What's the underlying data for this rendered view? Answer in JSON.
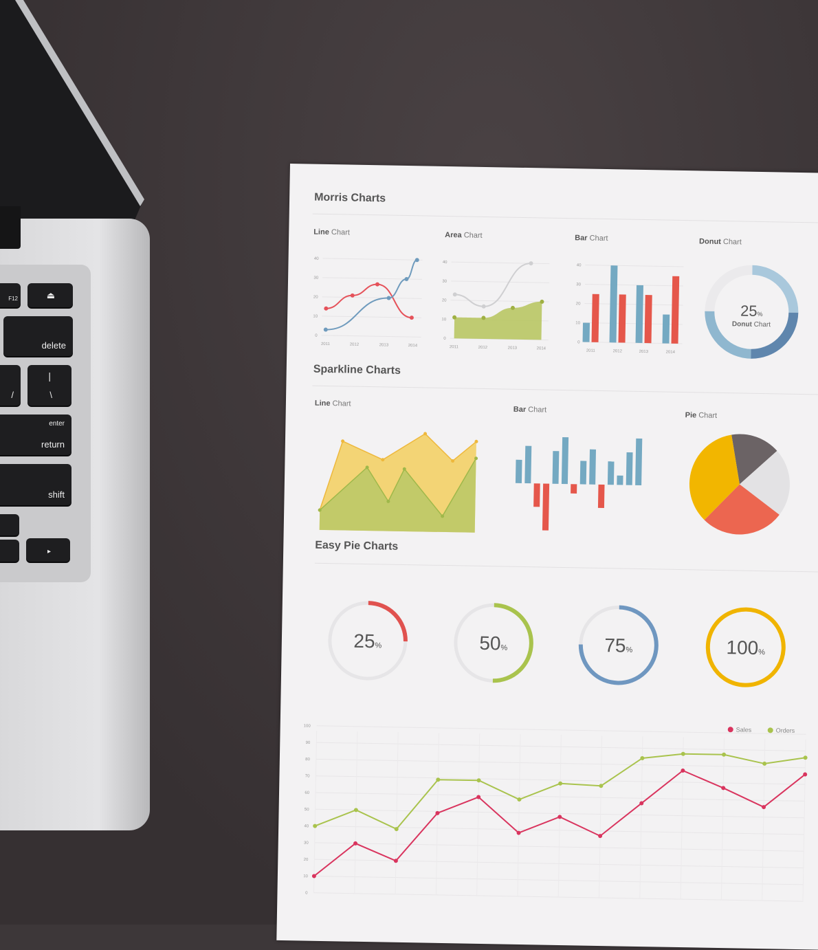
{
  "laptop": {
    "keys": {
      "f12": "F12",
      "eject": "⏏",
      "delete": "delete",
      "slash": "/",
      "pipe": "|",
      "backslash": "\\",
      "enter": "enter",
      "return": "return",
      "shift": "shift",
      "right_arrow": "▸"
    }
  },
  "paper": {
    "sections": {
      "morris": "Morris Charts",
      "sparkline": "Sparkline Charts",
      "easy_pie": "Easy Pie Charts"
    },
    "labels": {
      "bold_line": "Line",
      "bold_area": "Area",
      "bold_bar": "Bar",
      "bold_donut": "Donut",
      "bold_pie": "Pie",
      "chart": " Chart"
    },
    "donut_center": {
      "value": "25",
      "unit": "%",
      "label_bold": "Donut",
      "label_rest": " Chart"
    }
  },
  "colors": {
    "red": "#e5525a",
    "blue": "#6f9bbd",
    "green": "#b5c45a",
    "yellow": "#f2b700",
    "gray": "#cfcfd1",
    "crimson": "#d9345e",
    "lime": "#a9c34d"
  },
  "chart_data": [
    {
      "type": "line",
      "title": "Line Chart",
      "x_ticks": [
        "2011",
        "2012",
        "2013",
        "2014"
      ],
      "y_ticks": [
        "0",
        "10",
        "20",
        "30",
        "40"
      ],
      "ylim": [
        0,
        40
      ],
      "series": [
        {
          "color": "#e5525a",
          "x": [
            2011,
            2011.9,
            2012.75,
            2013.95
          ],
          "y": [
            14,
            21,
            27,
            10
          ]
        },
        {
          "color": "#6f9bbd",
          "x": [
            2011,
            2013.15,
            2013.75,
            2014.1
          ],
          "y": [
            3,
            20,
            30,
            40
          ]
        }
      ]
    },
    {
      "type": "area",
      "title": "Area Chart",
      "x_ticks": [
        "2011",
        "2012",
        "2013",
        "2014"
      ],
      "y_ticks": [
        "0",
        "10",
        "20",
        "30",
        "40"
      ],
      "ylim": [
        0,
        40
      ],
      "series": [
        {
          "color": "#cfcfd1",
          "x": [
            2011,
            2012,
            2013.6
          ],
          "y": [
            23,
            17,
            40
          ]
        },
        {
          "color": "#b5c45a",
          "x": [
            2011,
            2012,
            2013,
            2014
          ],
          "y": [
            11,
            11,
            16.5,
            20
          ]
        }
      ]
    },
    {
      "type": "bar",
      "title": "Bar Chart",
      "categories": [
        "2011",
        "2012",
        "2013",
        "2014"
      ],
      "y_ticks": [
        "0",
        "10",
        "20",
        "30",
        "40"
      ],
      "ylim": [
        0,
        40
      ],
      "series": [
        {
          "color": "#74a9c2",
          "values": [
            10,
            40,
            30,
            15
          ]
        },
        {
          "color": "#e5574b",
          "values": [
            25,
            25,
            25,
            35
          ]
        }
      ]
    },
    {
      "type": "pie",
      "title": "Donut Chart",
      "donut": true,
      "values": [
        25,
        25,
        25,
        25
      ],
      "colors": [
        "#a9c8dc",
        "#5f86ad",
        "#8fb7cf",
        "#ebeaec"
      ]
    },
    {
      "type": "area",
      "title": "Line Chart",
      "sparkline": true,
      "ylim": [
        0,
        10
      ],
      "xlim": [
        0,
        10
      ],
      "series": [
        {
          "color": "#f3cc55",
          "x": [
            0,
            1.4,
            4,
            6.7,
            8.5,
            10
          ],
          "y": [
            2,
            9,
            7.2,
            9.9,
            7.2,
            9.2
          ]
        },
        {
          "color": "#b9c867",
          "x": [
            0,
            3,
            4.4,
            5.4,
            7.9,
            10
          ],
          "y": [
            2,
            6.4,
            3,
            6.3,
            1.6,
            7.5
          ]
        }
      ]
    },
    {
      "type": "bar",
      "title": "Bar Chart",
      "sparkline": true,
      "values": [
        5,
        8,
        -5,
        -10,
        7,
        10,
        -2,
        5,
        7.5,
        -5,
        5,
        2,
        7,
        10
      ],
      "pos_color": "#74a9c2",
      "neg_color": "#e5574b"
    },
    {
      "type": "pie",
      "title": "Pie Chart",
      "values": [
        16,
        22,
        27,
        35
      ],
      "colors": [
        "#6b6365",
        "#e3e2e4",
        "#ec6650",
        "#f2b600"
      ]
    },
    {
      "type": "pie",
      "title": "Easy Pie Charts",
      "gauges": [
        {
          "value": 25,
          "label": "25",
          "color": "#e0524f"
        },
        {
          "value": 50,
          "label": "50",
          "color": "#a9c34d"
        },
        {
          "value": 75,
          "label": "75",
          "color": "#6f97c0"
        },
        {
          "value": 100,
          "label": "100",
          "color": "#f0b400"
        }
      ],
      "unit": "%"
    },
    {
      "type": "line",
      "y_ticks": [
        "0",
        "10",
        "20",
        "30",
        "40",
        "50",
        "60",
        "70",
        "80",
        "90",
        "100"
      ],
      "ylim": [
        0,
        100
      ],
      "grid": true,
      "legend": "top-right",
      "x": [
        0,
        1,
        2,
        3,
        4,
        5,
        6,
        7,
        8,
        9,
        10,
        11,
        12
      ],
      "series": [
        {
          "name": "Sales",
          "color": "#d9345e",
          "values": [
            10,
            30,
            20,
            49,
            59,
            38,
            48,
            37,
            57,
            77,
            67,
            56,
            76
          ]
        },
        {
          "name": "Orders",
          "color": "#a9c34d",
          "values": [
            40,
            50,
            39,
            69,
            69,
            58,
            68,
            67,
            84,
            87,
            87,
            82,
            86
          ]
        }
      ]
    }
  ]
}
